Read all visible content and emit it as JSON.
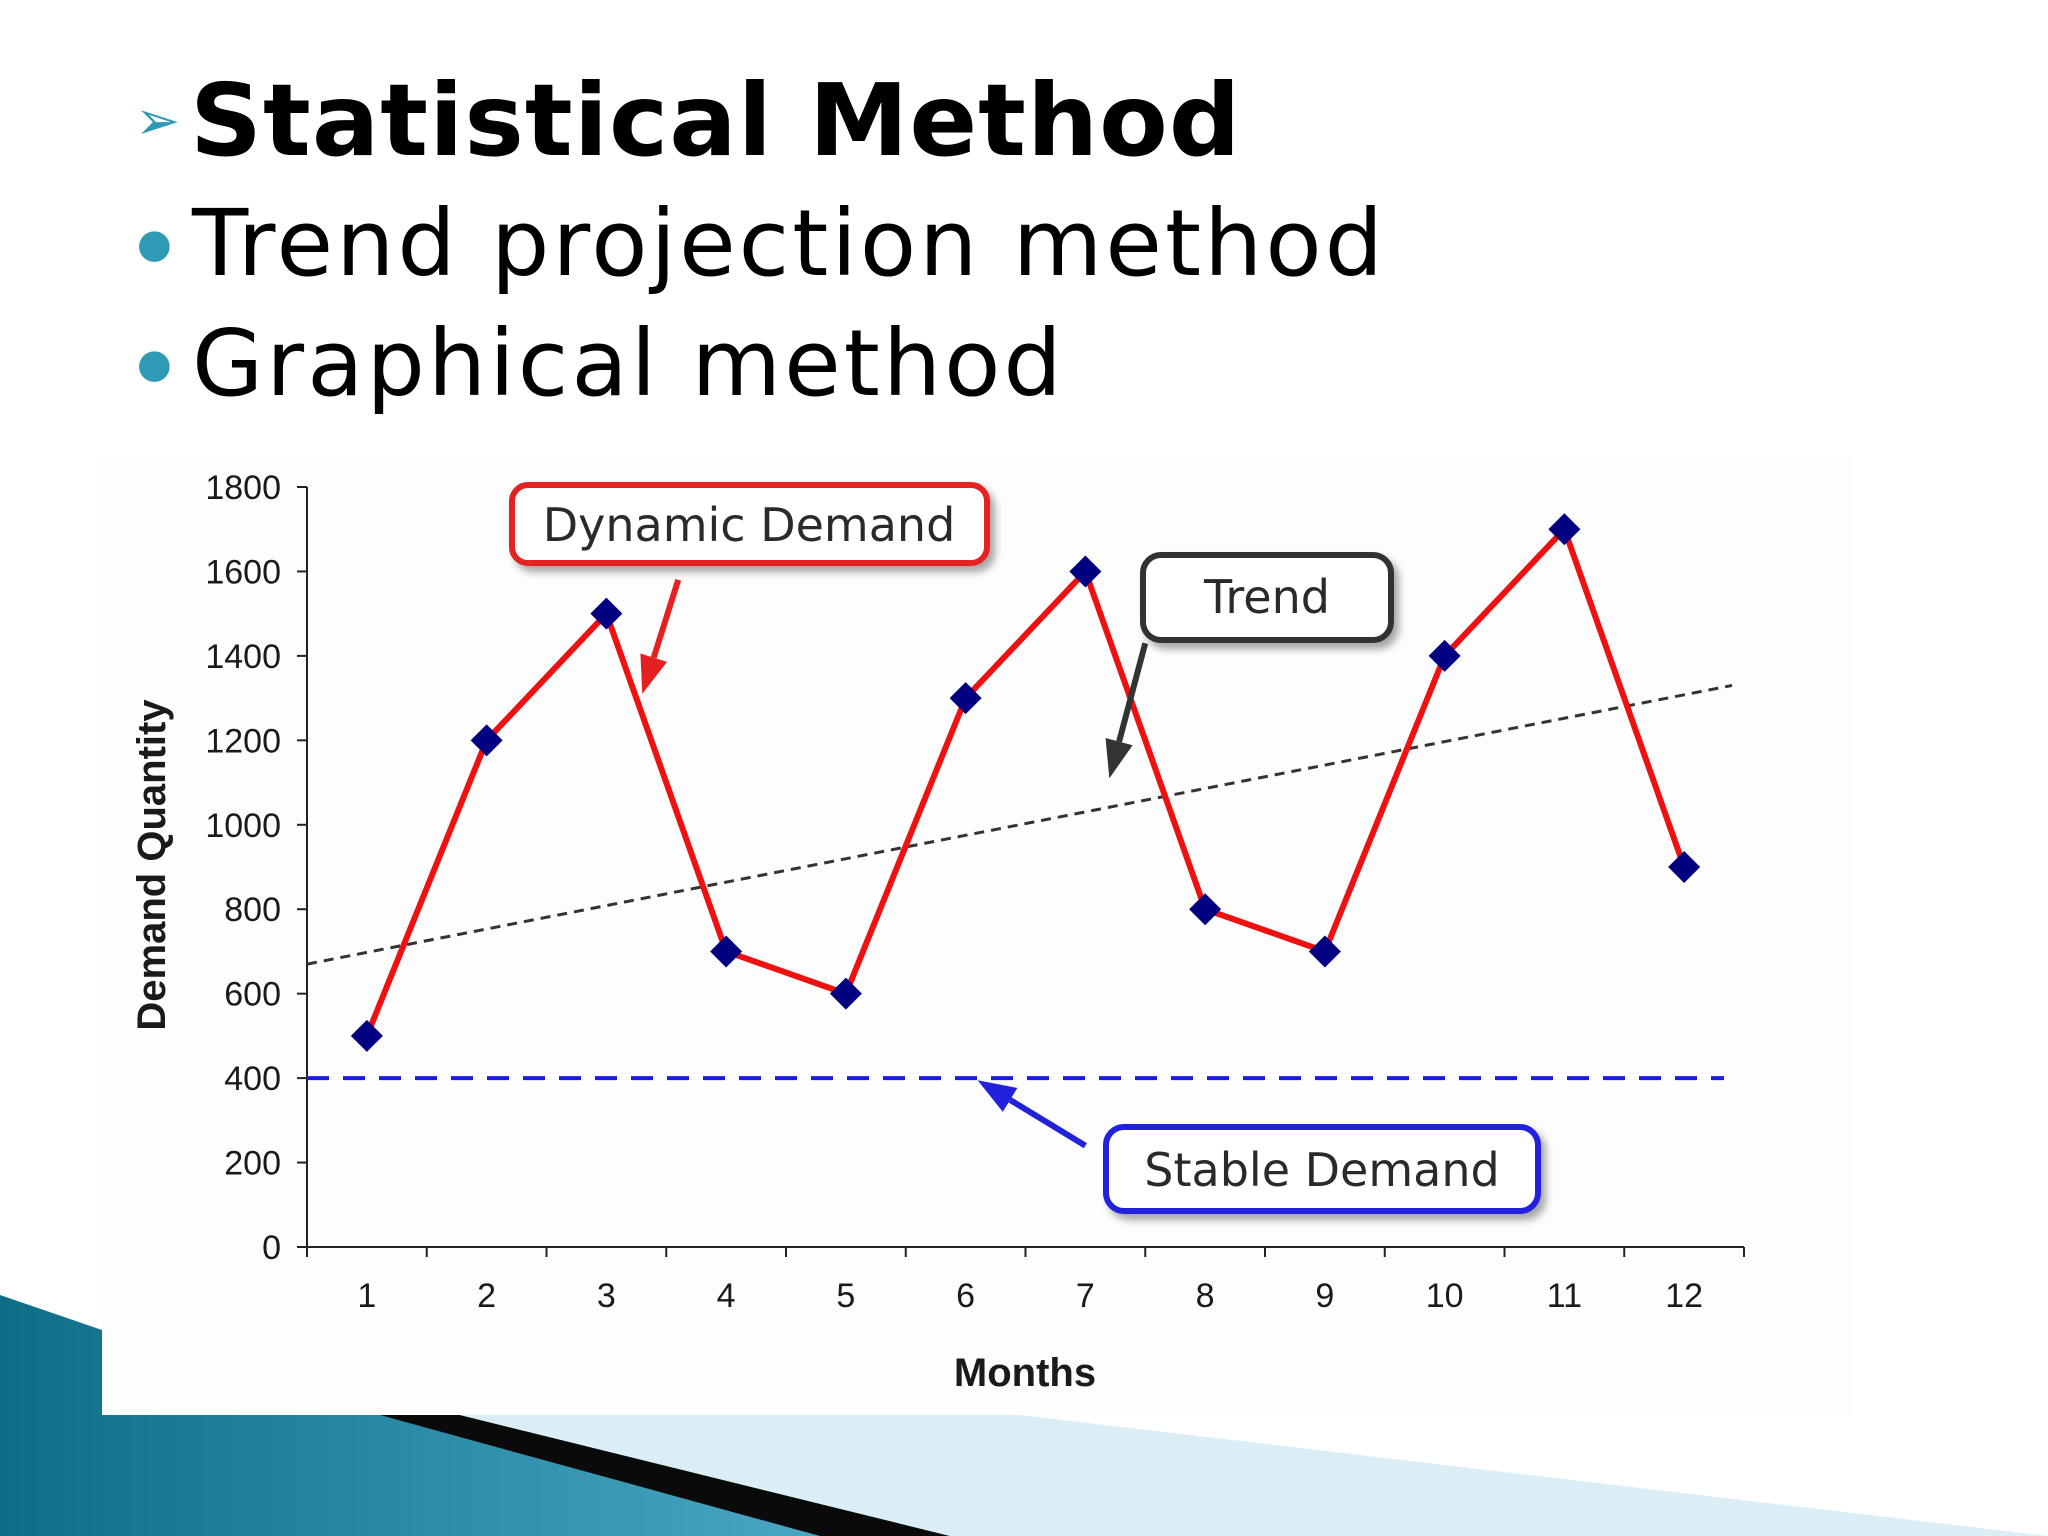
{
  "slide": {
    "heading": "Statistical Method",
    "items": [
      "Trend projection method",
      "Graphical method"
    ]
  },
  "colors": {
    "bullet": "#2e9ab5",
    "demand_line": "#ee1111",
    "marker": "#000080",
    "trend_line": "#333333",
    "stable_line": "#1a1ae6",
    "callout_dynamic": "#e52020",
    "callout_trend": "#333333",
    "callout_stable": "#2222dd"
  },
  "icons": {
    "heading_bullet": "arrow-bullet-icon",
    "item_bullet": "dot-bullet-icon"
  },
  "chart_data": {
    "type": "line",
    "x": [
      1,
      2,
      3,
      4,
      5,
      6,
      7,
      8,
      9,
      10,
      11,
      12
    ],
    "categories": [
      "1",
      "2",
      "3",
      "4",
      "5",
      "6",
      "7",
      "8",
      "9",
      "10",
      "11",
      "12"
    ],
    "series": [
      {
        "values": [
          500,
          1200,
          1500,
          700,
          600,
          1300,
          1600,
          800,
          700,
          1400,
          1700,
          900
        ],
        "style": "solid",
        "color": "#ee1111",
        "marker": "diamond"
      }
    ],
    "trend_line": {
      "start": [
        0.5,
        670
      ],
      "end": [
        12.4,
        1330
      ],
      "style": "dotted"
    },
    "stable_line": {
      "value": 400,
      "style": "dashed"
    },
    "xlabel": "Months",
    "ylabel": "Demand Quantity",
    "ylim": [
      0,
      1800
    ],
    "yticks": [
      0,
      200,
      400,
      600,
      800,
      1000,
      1200,
      1400,
      1600,
      1800
    ],
    "grid": false,
    "annotations": [
      {
        "text": "Dynamic Demand",
        "arrow_from": [
          3.6,
          1580
        ],
        "arrow_to": [
          3.3,
          1310
        ]
      },
      {
        "text": "Trend",
        "arrow_from": [
          7.5,
          1430
        ],
        "arrow_to": [
          7.2,
          1110
        ]
      },
      {
        "text": "Stable Demand",
        "arrow_from": [
          7.0,
          240
        ],
        "arrow_to": [
          6.1,
          395
        ]
      }
    ]
  }
}
